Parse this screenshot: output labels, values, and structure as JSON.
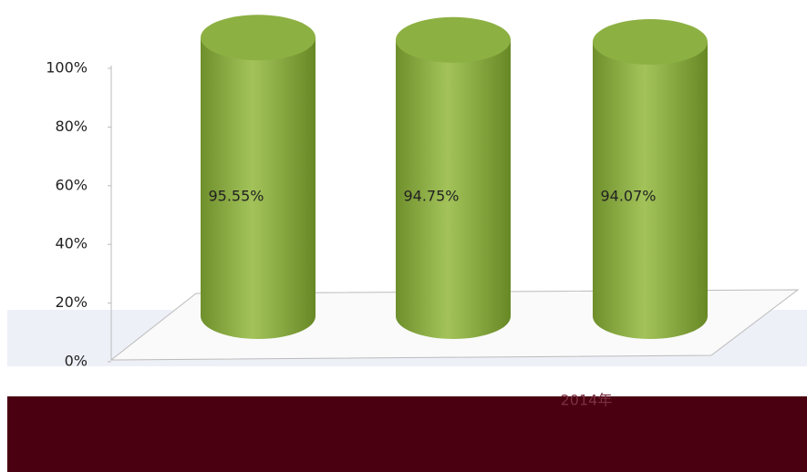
{
  "chart_data": {
    "type": "cylinder",
    "categories": [
      null,
      null,
      "2014年"
    ],
    "values": [
      95.55,
      94.75,
      94.07
    ],
    "value_labels": [
      "95.55%",
      "94.75%",
      "94.07%"
    ],
    "color": "#8db043",
    "ylim": [
      0,
      100
    ],
    "yticks": [
      {
        "value": 0,
        "label": "0%"
      },
      {
        "value": 20,
        "label": "20%"
      },
      {
        "value": 40,
        "label": "40%"
      },
      {
        "value": 60,
        "label": "60%"
      },
      {
        "value": 80,
        "label": "80%"
      },
      {
        "value": 100,
        "label": "100%"
      }
    ]
  }
}
